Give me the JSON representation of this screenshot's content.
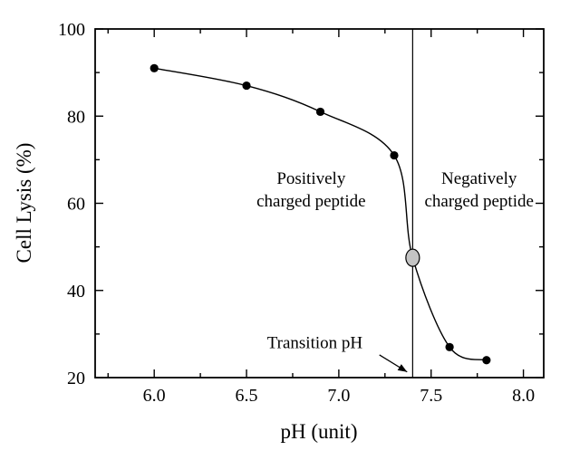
{
  "chart_data": {
    "type": "scatter",
    "title": "",
    "xlabel": "pH (unit)",
    "ylabel": "Cell Lysis (%)",
    "xlim": [
      5.68,
      8.11
    ],
    "ylim": [
      20,
      100
    ],
    "x_ticks": [
      6.0,
      6.5,
      7.0,
      7.5,
      8.0
    ],
    "x_tick_labels": [
      "6.0",
      "6.5",
      "7.0",
      "7.5",
      "8.0"
    ],
    "y_ticks": [
      20,
      40,
      60,
      80,
      100
    ],
    "y_tick_labels": [
      "20",
      "40",
      "60",
      "80",
      "100"
    ],
    "x_minor_step": 0.25,
    "y_minor_step": 10,
    "grid": false,
    "legend": false,
    "axis_color": "#000000",
    "series": [
      {
        "name": "cell-lysis-vs-ph",
        "marker": "filled-circle",
        "color": "#000000",
        "points": [
          [
            6.0,
            91
          ],
          [
            6.5,
            87
          ],
          [
            6.9,
            81
          ],
          [
            7.3,
            71
          ],
          [
            7.6,
            27
          ],
          [
            7.8,
            24
          ]
        ]
      }
    ],
    "transition_point": {
      "x": 7.4,
      "y": 47.5,
      "marker": "gray-ellipse",
      "fill": "#c4c4c4"
    },
    "fit_curve_through": [
      [
        6.0,
        91
      ],
      [
        6.5,
        87
      ],
      [
        6.9,
        81
      ],
      [
        7.3,
        71
      ],
      [
        7.4,
        47.5
      ],
      [
        7.6,
        27
      ],
      [
        7.8,
        24
      ]
    ],
    "vline": {
      "x": 7.4
    },
    "annotations": [
      {
        "id": "positively-charged-label",
        "lines": [
          "Positively",
          "charged peptide"
        ],
        "x": 6.85,
        "y": 64.5
      },
      {
        "id": "negatively-charged-label",
        "lines": [
          "Negatively",
          "charged peptide"
        ],
        "x": 7.76,
        "y": 64.5
      },
      {
        "id": "transition-ph-label",
        "lines": [
          "Transition pH"
        ],
        "x": 6.87,
        "y": 26.8,
        "arrow": {
          "from": [
            7.22,
            25.2
          ],
          "to": [
            7.37,
            21.3
          ]
        }
      }
    ]
  }
}
